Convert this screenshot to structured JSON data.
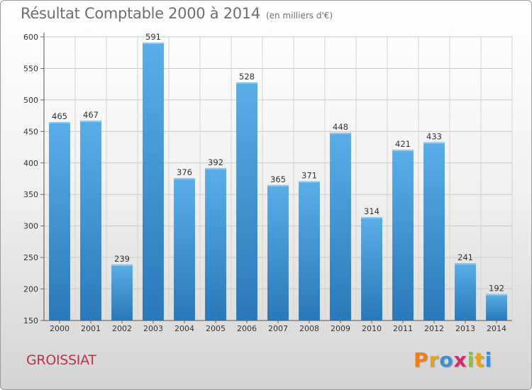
{
  "chart_data": {
    "type": "bar",
    "title": "Résultat Comptable 2000 à 2014",
    "subtitle": "(en milliers d'€)",
    "categories": [
      "2000",
      "2001",
      "2002",
      "2003",
      "2004",
      "2005",
      "2006",
      "2007",
      "2008",
      "2009",
      "2010",
      "2011",
      "2012",
      "2013",
      "2014"
    ],
    "values": [
      465,
      467,
      239,
      591,
      376,
      392,
      528,
      365,
      371,
      448,
      314,
      421,
      433,
      241,
      192
    ],
    "value_labels": [
      "465",
      "467",
      "239",
      "591",
      "376",
      "392",
      "528",
      "365",
      "371",
      "448",
      "314",
      "421",
      "433",
      "241",
      "192"
    ],
    "ylim": [
      150,
      600
    ],
    "yticks": [
      150,
      200,
      250,
      300,
      350,
      400,
      450,
      500,
      550,
      600
    ],
    "ytick_labels": [
      "150",
      "200",
      "250",
      "300",
      "350",
      "400",
      "450",
      "500",
      "550",
      "600"
    ],
    "xlabel": "",
    "ylabel": "",
    "grid": true,
    "bar_color_top": "#5aaee8",
    "bar_color_bottom": "#2a78b8"
  },
  "footer": {
    "commune": "GROISSIAT",
    "logo_letters": [
      "P",
      "r",
      "o",
      "x",
      "i",
      "t",
      "i"
    ],
    "logo_colors": [
      "#f07d1a",
      "#e8a11a",
      "#3c8fd4",
      "#d62c6e",
      "#8cc13f",
      "#e8a11a",
      "#3c8fd4"
    ],
    "commune_color": "#c0304a"
  }
}
